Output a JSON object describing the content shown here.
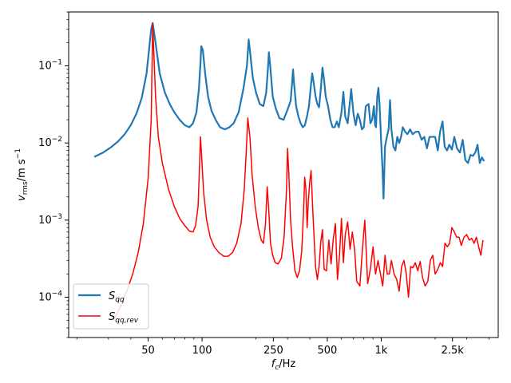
{
  "chart_data": {
    "type": "line",
    "title": "",
    "xlabel": "f_c/Hz",
    "ylabel": "v_rms/m s^-1",
    "xscale": "log",
    "yscale": "log",
    "xlim": [
      18,
      4500
    ],
    "ylim": [
      3e-05,
      0.5
    ],
    "grid": false,
    "legend_position": "lower-left",
    "xticks": [
      {
        "value": 50,
        "label": "50"
      },
      {
        "value": 100,
        "label": "100"
      },
      {
        "value": 250,
        "label": "250"
      },
      {
        "value": 500,
        "label": "500"
      },
      {
        "value": 1000,
        "label": "1k"
      },
      {
        "value": 2500,
        "label": "2.5k"
      }
    ],
    "yticks": [
      {
        "value": 0.0001,
        "base": "10",
        "exp": "−4"
      },
      {
        "value": 0.001,
        "base": "10",
        "exp": "−3"
      },
      {
        "value": 0.01,
        "base": "10",
        "exp": "−2"
      },
      {
        "value": 0.1,
        "base": "10",
        "exp": "−1"
      }
    ],
    "series": [
      {
        "name": "S_qq",
        "name_main": "S",
        "name_sub": "qq",
        "color": "#1f77b4",
        "line_width": 2.2,
        "points": [
          [
            25,
            0.0066
          ],
          [
            28,
            0.0075
          ],
          [
            31,
            0.0088
          ],
          [
            34,
            0.0105
          ],
          [
            37,
            0.013
          ],
          [
            40,
            0.017
          ],
          [
            43,
            0.024
          ],
          [
            46,
            0.038
          ],
          [
            49,
            0.08
          ],
          [
            52,
            0.3
          ],
          [
            53,
            0.36
          ],
          [
            55,
            0.2
          ],
          [
            58,
            0.08
          ],
          [
            62,
            0.045
          ],
          [
            66,
            0.032
          ],
          [
            70,
            0.025
          ],
          [
            75,
            0.02
          ],
          [
            80,
            0.017
          ],
          [
            85,
            0.016
          ],
          [
            89,
            0.018
          ],
          [
            93,
            0.025
          ],
          [
            96,
            0.05
          ],
          [
            98,
            0.11
          ],
          [
            99,
            0.18
          ],
          [
            101,
            0.16
          ],
          [
            104,
            0.08
          ],
          [
            108,
            0.04
          ],
          [
            113,
            0.026
          ],
          [
            119,
            0.02
          ],
          [
            126,
            0.016
          ],
          [
            134,
            0.015
          ],
          [
            142,
            0.016
          ],
          [
            150,
            0.018
          ],
          [
            160,
            0.025
          ],
          [
            170,
            0.05
          ],
          [
            178,
            0.1
          ],
          [
            182,
            0.22
          ],
          [
            186,
            0.14
          ],
          [
            192,
            0.07
          ],
          [
            200,
            0.045
          ],
          [
            210,
            0.032
          ],
          [
            220,
            0.03
          ],
          [
            228,
            0.045
          ],
          [
            233,
            0.09
          ],
          [
            236,
            0.15
          ],
          [
            240,
            0.1
          ],
          [
            248,
            0.04
          ],
          [
            258,
            0.028
          ],
          [
            270,
            0.021
          ],
          [
            285,
            0.02
          ],
          [
            300,
            0.027
          ],
          [
            312,
            0.035
          ],
          [
            318,
            0.06
          ],
          [
            322,
            0.09
          ],
          [
            326,
            0.06
          ],
          [
            335,
            0.03
          ],
          [
            345,
            0.022
          ],
          [
            355,
            0.018
          ],
          [
            365,
            0.016
          ],
          [
            375,
            0.017
          ],
          [
            385,
            0.022
          ],
          [
            395,
            0.03
          ],
          [
            405,
            0.055
          ],
          [
            412,
            0.08
          ],
          [
            420,
            0.06
          ],
          [
            430,
            0.04
          ],
          [
            440,
            0.032
          ],
          [
            450,
            0.029
          ],
          [
            460,
            0.05
          ],
          [
            470,
            0.095
          ],
          [
            480,
            0.065
          ],
          [
            490,
            0.04
          ],
          [
            505,
            0.03
          ],
          [
            520,
            0.02
          ],
          [
            535,
            0.016
          ],
          [
            550,
            0.016
          ],
          [
            565,
            0.019
          ],
          [
            580,
            0.016
          ],
          [
            600,
            0.025
          ],
          [
            615,
            0.046
          ],
          [
            630,
            0.022
          ],
          [
            650,
            0.018
          ],
          [
            665,
            0.03
          ],
          [
            680,
            0.05
          ],
          [
            700,
            0.024
          ],
          [
            720,
            0.017
          ],
          [
            740,
            0.024
          ],
          [
            760,
            0.02
          ],
          [
            780,
            0.015
          ],
          [
            800,
            0.016
          ],
          [
            820,
            0.03
          ],
          [
            850,
            0.032
          ],
          [
            870,
            0.018
          ],
          [
            890,
            0.02
          ],
          [
            910,
            0.03
          ],
          [
            925,
            0.017
          ],
          [
            935,
            0.016
          ],
          [
            950,
            0.04
          ],
          [
            965,
            0.052
          ],
          [
            980,
            0.03
          ],
          [
            1000,
            0.01
          ],
          [
            1015,
            0.005
          ],
          [
            1030,
            0.0019
          ],
          [
            1050,
            0.009
          ],
          [
            1075,
            0.012
          ],
          [
            1100,
            0.015
          ],
          [
            1120,
            0.036
          ],
          [
            1140,
            0.015
          ],
          [
            1170,
            0.009
          ],
          [
            1200,
            0.008
          ],
          [
            1230,
            0.012
          ],
          [
            1260,
            0.01
          ],
          [
            1290,
            0.012
          ],
          [
            1320,
            0.016
          ],
          [
            1360,
            0.014
          ],
          [
            1400,
            0.013
          ],
          [
            1450,
            0.015
          ],
          [
            1500,
            0.013
          ],
          [
            1560,
            0.014
          ],
          [
            1620,
            0.014
          ],
          [
            1680,
            0.011
          ],
          [
            1740,
            0.012
          ],
          [
            1800,
            0.0085
          ],
          [
            1860,
            0.012
          ],
          [
            1930,
            0.012
          ],
          [
            2000,
            0.012
          ],
          [
            2070,
            0.008
          ],
          [
            2130,
            0.014
          ],
          [
            2200,
            0.019
          ],
          [
            2260,
            0.009
          ],
          [
            2330,
            0.008
          ],
          [
            2400,
            0.0095
          ],
          [
            2480,
            0.0082
          ],
          [
            2560,
            0.012
          ],
          [
            2650,
            0.0085
          ],
          [
            2750,
            0.0075
          ],
          [
            2850,
            0.011
          ],
          [
            2950,
            0.006
          ],
          [
            3050,
            0.0055
          ],
          [
            3150,
            0.007
          ],
          [
            3250,
            0.0068
          ],
          [
            3350,
            0.0075
          ],
          [
            3450,
            0.0095
          ],
          [
            3550,
            0.0055
          ],
          [
            3650,
            0.0065
          ],
          [
            3750,
            0.0058
          ]
        ]
      },
      {
        "name": "S_qq,rev",
        "name_main": "S",
        "name_sub": "qq,rev",
        "color": "#ff0000",
        "line_width": 1.5,
        "points": [
          [
            32,
            5e-05
          ],
          [
            35,
            7.5e-05
          ],
          [
            38,
            0.00012
          ],
          [
            41,
            0.0002
          ],
          [
            44,
            0.00038
          ],
          [
            47,
            0.0009
          ],
          [
            50,
            0.0035
          ],
          [
            52,
            0.02
          ],
          [
            53,
            0.35
          ],
          [
            55,
            0.04
          ],
          [
            57,
            0.012
          ],
          [
            60,
            0.0055
          ],
          [
            65,
            0.0025
          ],
          [
            70,
            0.0015
          ],
          [
            75,
            0.00105
          ],
          [
            80,
            0.00085
          ],
          [
            85,
            0.00072
          ],
          [
            89,
            0.0007
          ],
          [
            92,
            0.00085
          ],
          [
            95,
            0.0015
          ],
          [
            97,
            0.006
          ],
          [
            98,
            0.012
          ],
          [
            99,
            0.008
          ],
          [
            102,
            0.0023
          ],
          [
            106,
            0.001
          ],
          [
            111,
            0.0006
          ],
          [
            117,
            0.00045
          ],
          [
            124,
            0.00038
          ],
          [
            132,
            0.00034
          ],
          [
            140,
            0.00034
          ],
          [
            148,
            0.00038
          ],
          [
            156,
            0.0005
          ],
          [
            165,
            0.0009
          ],
          [
            172,
            0.0025
          ],
          [
            177,
            0.009
          ],
          [
            180,
            0.021
          ],
          [
            185,
            0.012
          ],
          [
            190,
            0.004
          ],
          [
            198,
            0.0015
          ],
          [
            206,
            0.0008
          ],
          [
            214,
            0.00055
          ],
          [
            220,
            0.0005
          ],
          [
            226,
            0.0009
          ],
          [
            231,
            0.0027
          ],
          [
            235,
            0.0015
          ],
          [
            241,
            0.0005
          ],
          [
            248,
            0.00035
          ],
          [
            256,
            0.00028
          ],
          [
            266,
            0.00027
          ],
          [
            277,
            0.00032
          ],
          [
            287,
            0.0006
          ],
          [
            296,
            0.0025
          ],
          [
            300,
            0.0085
          ],
          [
            305,
            0.004
          ],
          [
            312,
            0.001
          ],
          [
            320,
            0.00045
          ],
          [
            330,
            0.00022
          ],
          [
            340,
            0.00018
          ],
          [
            350,
            0.00022
          ],
          [
            360,
            0.0004
          ],
          [
            368,
            0.0012
          ],
          [
            374,
            0.0036
          ],
          [
            380,
            0.0025
          ],
          [
            386,
            0.0008
          ],
          [
            392,
            0.0018
          ],
          [
            399,
            0.0031
          ],
          [
            406,
            0.0044
          ],
          [
            414,
            0.0015
          ],
          [
            422,
            0.0006
          ],
          [
            430,
            0.00025
          ],
          [
            440,
            0.00017
          ],
          [
            450,
            0.00025
          ],
          [
            460,
            0.00052
          ],
          [
            470,
            0.00075
          ],
          [
            480,
            0.00023
          ],
          [
            495,
            0.00022
          ],
          [
            510,
            0.00055
          ],
          [
            525,
            0.00027
          ],
          [
            540,
            0.00057
          ],
          [
            555,
            0.0009
          ],
          [
            570,
            0.00017
          ],
          [
            585,
            0.00035
          ],
          [
            600,
            0.00105
          ],
          [
            615,
            0.00028
          ],
          [
            630,
            0.00065
          ],
          [
            650,
            0.00095
          ],
          [
            670,
            0.00042
          ],
          [
            690,
            0.0007
          ],
          [
            710,
            0.00042
          ],
          [
            730,
            0.00016
          ],
          [
            760,
            0.00014
          ],
          [
            790,
            0.0005
          ],
          [
            810,
            0.001
          ],
          [
            840,
            0.00015
          ],
          [
            870,
            0.00023
          ],
          [
            900,
            0.00045
          ],
          [
            930,
            0.0002
          ],
          [
            960,
            0.0003
          ],
          [
            990,
            0.0002
          ],
          [
            1020,
            0.00014
          ],
          [
            1050,
            0.00035
          ],
          [
            1080,
            0.0002
          ],
          [
            1110,
            0.0002
          ],
          [
            1140,
            0.0003
          ],
          [
            1180,
            0.0002
          ],
          [
            1220,
            0.00017
          ],
          [
            1260,
            0.00012
          ],
          [
            1300,
            0.00025
          ],
          [
            1340,
            0.0003
          ],
          [
            1380,
            0.0002
          ],
          [
            1420,
            0.0001
          ],
          [
            1460,
            0.00025
          ],
          [
            1500,
            0.00024
          ],
          [
            1550,
            0.00028
          ],
          [
            1600,
            0.00022
          ],
          [
            1650,
            0.00029
          ],
          [
            1700,
            0.00018
          ],
          [
            1760,
            0.00014
          ],
          [
            1820,
            0.00016
          ],
          [
            1880,
            0.0003
          ],
          [
            1940,
            0.00035
          ],
          [
            2000,
            0.0002
          ],
          [
            2070,
            0.00023
          ],
          [
            2140,
            0.00028
          ],
          [
            2200,
            0.00025
          ],
          [
            2270,
            0.0005
          ],
          [
            2340,
            0.00045
          ],
          [
            2410,
            0.0005
          ],
          [
            2480,
            0.0008
          ],
          [
            2560,
            0.0007
          ],
          [
            2640,
            0.0006
          ],
          [
            2720,
            0.0006
          ],
          [
            2800,
            0.00047
          ],
          [
            2900,
            0.0006
          ],
          [
            3000,
            0.00065
          ],
          [
            3100,
            0.00055
          ],
          [
            3200,
            0.00058
          ],
          [
            3300,
            0.0005
          ],
          [
            3400,
            0.0006
          ],
          [
            3500,
            0.00045
          ],
          [
            3600,
            0.00035
          ],
          [
            3700,
            0.00055
          ]
        ]
      }
    ]
  }
}
